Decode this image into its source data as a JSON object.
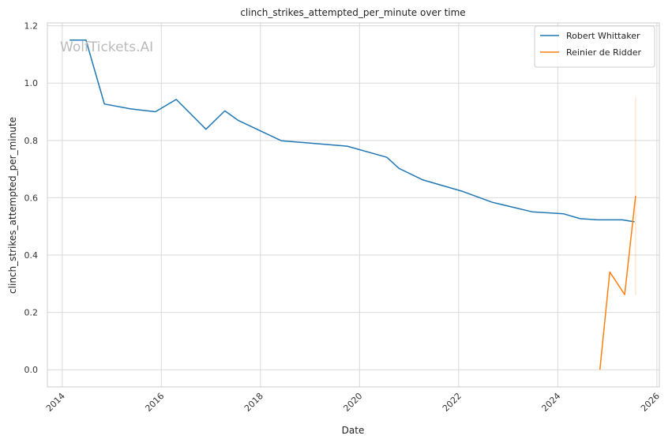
{
  "chart_data": {
    "type": "line",
    "title": "clinch_strikes_attempted_per_minute over time",
    "xlabel": "Date",
    "ylabel": "clinch_strikes_attempted_per_minute",
    "xlim": [
      2013.7,
      2026.05
    ],
    "ylim": [
      -0.06,
      1.21
    ],
    "x_ticks": [
      2014,
      2016,
      2018,
      2020,
      2022,
      2024,
      2026
    ],
    "y_ticks": [
      0.0,
      0.2,
      0.4,
      0.6,
      0.8,
      1.0,
      1.2
    ],
    "y_tick_labels": [
      "0.0",
      "0.2",
      "0.4",
      "0.6",
      "0.8",
      "1.0",
      "1.2"
    ],
    "grid": true,
    "legend_position": "top-right",
    "watermark": "WolfTickets.AI",
    "series": [
      {
        "name": "Robert Whittaker",
        "color": "#1f77b4",
        "x": [
          2014.15,
          2014.48,
          2014.85,
          2015.38,
          2015.88,
          2016.3,
          2016.9,
          2017.28,
          2017.55,
          2018.42,
          2019.75,
          2020.55,
          2020.8,
          2021.28,
          2022.08,
          2022.68,
          2023.48,
          2024.12,
          2024.45,
          2024.8,
          2025.3,
          2025.55
        ],
        "y": [
          1.15,
          1.15,
          0.927,
          0.91,
          0.9,
          0.943,
          0.839,
          0.903,
          0.87,
          0.799,
          0.78,
          0.741,
          0.702,
          0.662,
          0.622,
          0.584,
          0.551,
          0.544,
          0.527,
          0.523,
          0.523,
          0.516
        ]
      },
      {
        "name": "Reinier de Ridder",
        "color": "#ff7f0e",
        "x": [
          2024.85,
          2025.05,
          2025.35,
          2025.57
        ],
        "y": [
          0.0,
          0.341,
          0.262,
          0.607
        ],
        "band": {
          "x": 2025.57,
          "low": 0.26,
          "high": 0.95
        }
      }
    ]
  }
}
